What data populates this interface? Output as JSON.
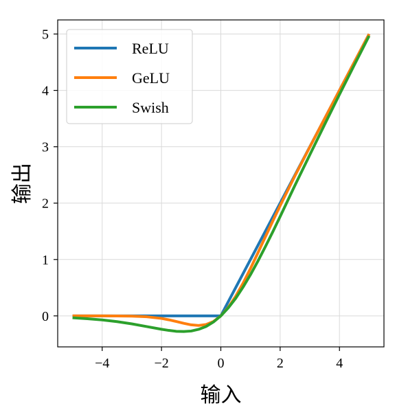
{
  "chart_data": {
    "type": "line",
    "xlabel": "输入",
    "ylabel": "输出",
    "xlim": [
      -5.5,
      5.5
    ],
    "ylim": [
      -0.55,
      5.25
    ],
    "xticks": [
      -4,
      -2,
      0,
      2,
      4
    ],
    "xtick_labels": [
      "−4",
      "−2",
      "0",
      "2",
      "4"
    ],
    "yticks": [
      0,
      1,
      2,
      3,
      4,
      5
    ],
    "ytick_labels": [
      "0",
      "1",
      "2",
      "3",
      "4",
      "5"
    ],
    "grid": true,
    "legend_position": "top-left",
    "x": [
      -5,
      -4.5,
      -4,
      -3.5,
      -3,
      -2.5,
      -2,
      -1.75,
      -1.5,
      -1.25,
      -1,
      -0.75,
      -0.5,
      -0.25,
      0,
      0.25,
      0.5,
      0.75,
      1,
      1.25,
      1.5,
      1.75,
      2,
      2.5,
      3,
      3.5,
      4,
      4.5,
      5
    ],
    "series": [
      {
        "name": "ReLU",
        "color": "#1f77b4",
        "values": [
          0,
          0,
          0,
          0,
          0,
          0,
          0,
          0,
          0,
          0,
          0,
          0,
          0,
          0,
          0,
          0.25,
          0.5,
          0.75,
          1,
          1.25,
          1.5,
          1.75,
          2,
          2.5,
          3,
          3.5,
          4,
          4.5,
          5
        ]
      },
      {
        "name": "GeLU",
        "color": "#ff7f0e",
        "values": [
          0,
          0,
          0,
          -0.001,
          -0.004,
          -0.016,
          -0.045,
          -0.07,
          -0.1,
          -0.132,
          -0.159,
          -0.17,
          -0.154,
          -0.1,
          0,
          0.15,
          0.346,
          0.58,
          0.841,
          1.118,
          1.4,
          1.68,
          1.955,
          2.485,
          2.996,
          3.499,
          4,
          4.5,
          5
        ]
      },
      {
        "name": "Swish",
        "color": "#2ca02c",
        "values": [
          -0.033,
          -0.05,
          -0.072,
          -0.102,
          -0.142,
          -0.19,
          -0.238,
          -0.258,
          -0.274,
          -0.278,
          -0.269,
          -0.239,
          -0.189,
          -0.109,
          0,
          0.141,
          0.311,
          0.511,
          0.731,
          0.971,
          1.226,
          1.49,
          1.762,
          2.317,
          2.857,
          3.395,
          3.928,
          4.45,
          4.967
        ]
      }
    ]
  }
}
